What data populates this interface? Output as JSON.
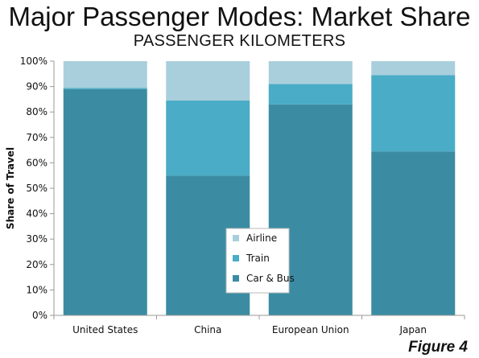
{
  "title": "Major Passenger Modes: Market Share",
  "subtitle": "PASSENGER KILOMETERS",
  "figure_label": "Figure 4",
  "colors": {
    "Car & Bus": "#3b8ca3",
    "Train": "#4aacc6",
    "Airline": "#a9cfdc",
    "gap": "#ffffff",
    "axis": "#999999",
    "plot_background": "#ffffff"
  },
  "chart_data": {
    "type": "bar",
    "stacked": true,
    "title": "Major Passenger Modes: Market Share",
    "subtitle": "PASSENGER KILOMETERS",
    "xlabel": "",
    "ylabel": "Share of Travel",
    "ylim": [
      0,
      100
    ],
    "yticks": [
      "0%",
      "10%",
      "20%",
      "30%",
      "40%",
      "50%",
      "60%",
      "70%",
      "80%",
      "90%",
      "100%"
    ],
    "grid": false,
    "legend_position": "bottom-center (inside plot)",
    "categories": [
      "United States",
      "China",
      "European Union",
      "Japan"
    ],
    "series": [
      {
        "name": "Car & Bus",
        "values": [
          89,
          55,
          83,
          64.5
        ]
      },
      {
        "name": "Train",
        "values": [
          0.5,
          29.5,
          8,
          30
        ]
      },
      {
        "name": "Airline",
        "values": [
          10.5,
          15.5,
          9,
          5.5
        ]
      }
    ],
    "legend_order": [
      "Airline",
      "Train",
      "Car & Bus"
    ]
  }
}
